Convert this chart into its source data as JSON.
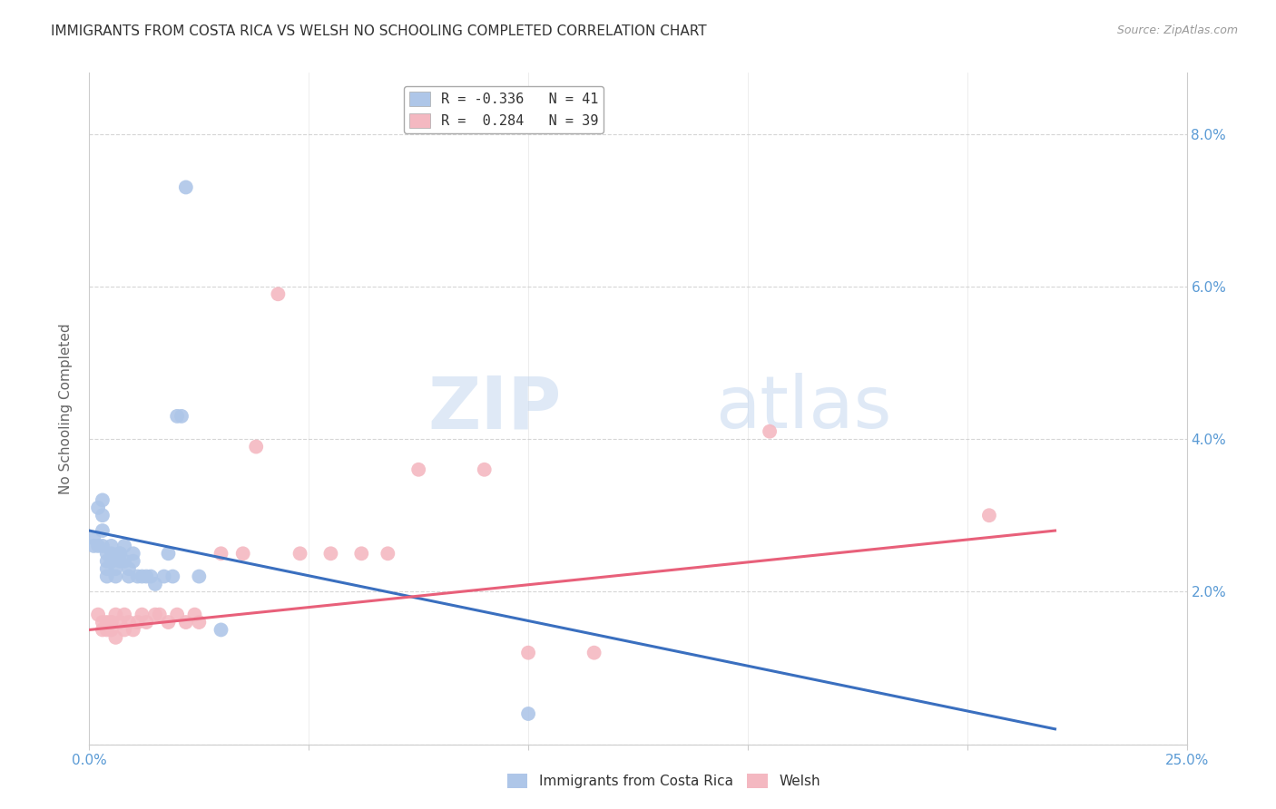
{
  "title": "IMMIGRANTS FROM COSTA RICA VS WELSH NO SCHOOLING COMPLETED CORRELATION CHART",
  "source": "Source: ZipAtlas.com",
  "ylabel": "No Schooling Completed",
  "xlim": [
    0.0,
    0.25
  ],
  "ylim": [
    0.0,
    0.088
  ],
  "xticks": [
    0.0,
    0.05,
    0.1,
    0.15,
    0.2,
    0.25
  ],
  "xticklabels": [
    "0.0%",
    "",
    "",
    "",
    "",
    "25.0%"
  ],
  "yticks": [
    0.0,
    0.02,
    0.04,
    0.06,
    0.08
  ],
  "yticklabels_left": [
    "",
    "",
    "",
    "",
    ""
  ],
  "yticklabels_right": [
    "",
    "2.0%",
    "4.0%",
    "6.0%",
    "8.0%"
  ],
  "watermark": "ZIPatlas",
  "legend_entries": [
    {
      "label": "R = -0.336   N = 41",
      "color": "#aec6e8"
    },
    {
      "label": "R =  0.284   N = 39",
      "color": "#f4b8c1"
    }
  ],
  "blue_color": "#aec6e8",
  "pink_color": "#f4b8c1",
  "blue_line_color": "#3a6fbf",
  "pink_line_color": "#e8607a",
  "blue_scatter": [
    [
      0.001,
      0.027
    ],
    [
      0.001,
      0.026
    ],
    [
      0.002,
      0.031
    ],
    [
      0.002,
      0.026
    ],
    [
      0.003,
      0.032
    ],
    [
      0.003,
      0.03
    ],
    [
      0.003,
      0.028
    ],
    [
      0.003,
      0.026
    ],
    [
      0.004,
      0.024
    ],
    [
      0.004,
      0.023
    ],
    [
      0.004,
      0.022
    ],
    [
      0.004,
      0.025
    ],
    [
      0.005,
      0.024
    ],
    [
      0.005,
      0.026
    ],
    [
      0.005,
      0.025
    ],
    [
      0.005,
      0.024
    ],
    [
      0.006,
      0.023
    ],
    [
      0.006,
      0.022
    ],
    [
      0.007,
      0.025
    ],
    [
      0.007,
      0.024
    ],
    [
      0.007,
      0.025
    ],
    [
      0.008,
      0.026
    ],
    [
      0.008,
      0.024
    ],
    [
      0.009,
      0.023
    ],
    [
      0.009,
      0.022
    ],
    [
      0.01,
      0.025
    ],
    [
      0.01,
      0.024
    ],
    [
      0.011,
      0.022
    ],
    [
      0.012,
      0.022
    ],
    [
      0.013,
      0.022
    ],
    [
      0.014,
      0.022
    ],
    [
      0.015,
      0.021
    ],
    [
      0.017,
      0.022
    ],
    [
      0.018,
      0.025
    ],
    [
      0.019,
      0.022
    ],
    [
      0.02,
      0.043
    ],
    [
      0.021,
      0.043
    ],
    [
      0.025,
      0.022
    ],
    [
      0.03,
      0.015
    ],
    [
      0.1,
      0.004
    ],
    [
      0.022,
      0.073
    ]
  ],
  "pink_scatter": [
    [
      0.002,
      0.017
    ],
    [
      0.003,
      0.016
    ],
    [
      0.003,
      0.015
    ],
    [
      0.004,
      0.016
    ],
    [
      0.004,
      0.015
    ],
    [
      0.005,
      0.016
    ],
    [
      0.005,
      0.015
    ],
    [
      0.005,
      0.016
    ],
    [
      0.006,
      0.017
    ],
    [
      0.006,
      0.014
    ],
    [
      0.007,
      0.016
    ],
    [
      0.008,
      0.017
    ],
    [
      0.008,
      0.015
    ],
    [
      0.009,
      0.016
    ],
    [
      0.01,
      0.015
    ],
    [
      0.011,
      0.016
    ],
    [
      0.012,
      0.017
    ],
    [
      0.013,
      0.016
    ],
    [
      0.015,
      0.017
    ],
    [
      0.016,
      0.017
    ],
    [
      0.018,
      0.016
    ],
    [
      0.02,
      0.017
    ],
    [
      0.022,
      0.016
    ],
    [
      0.024,
      0.017
    ],
    [
      0.025,
      0.016
    ],
    [
      0.03,
      0.025
    ],
    [
      0.035,
      0.025
    ],
    [
      0.038,
      0.039
    ],
    [
      0.043,
      0.059
    ],
    [
      0.048,
      0.025
    ],
    [
      0.055,
      0.025
    ],
    [
      0.062,
      0.025
    ],
    [
      0.068,
      0.025
    ],
    [
      0.075,
      0.036
    ],
    [
      0.09,
      0.036
    ],
    [
      0.1,
      0.012
    ],
    [
      0.115,
      0.012
    ],
    [
      0.155,
      0.041
    ],
    [
      0.205,
      0.03
    ]
  ],
  "blue_line": [
    [
      0.0,
      0.028
    ],
    [
      0.22,
      0.002
    ]
  ],
  "pink_line": [
    [
      0.0,
      0.015
    ],
    [
      0.22,
      0.028
    ]
  ],
  "background_color": "#ffffff",
  "grid_color": "#cccccc",
  "title_fontsize": 11,
  "tick_label_color": "#5b9bd5"
}
